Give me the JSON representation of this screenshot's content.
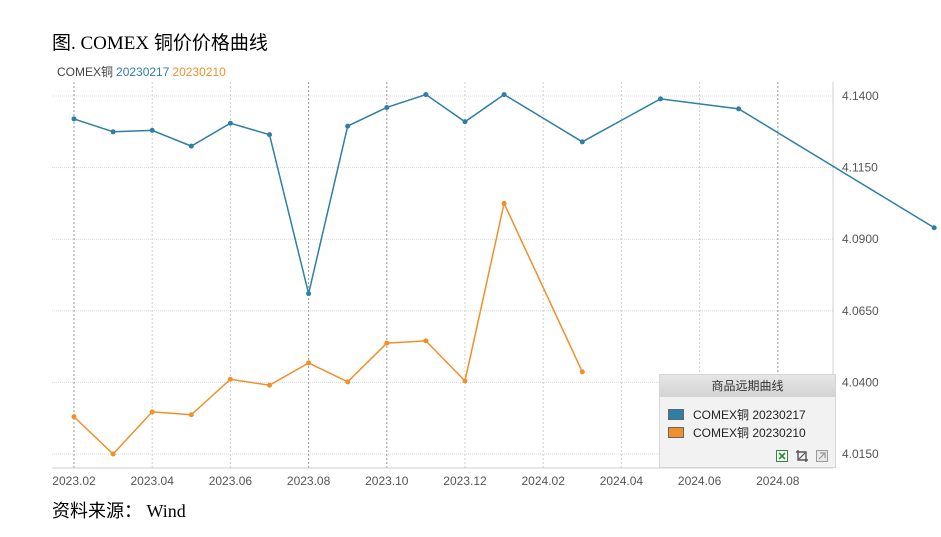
{
  "figure": {
    "title": "图. COMEX 铜价价格曲线",
    "source": "资料来源： Wind"
  },
  "legend": {
    "name": "COMEX铜",
    "entries": [
      {
        "label": "20230217",
        "color": "#2e7ea6"
      },
      {
        "label": "20230210",
        "color": "#f0902b"
      }
    ]
  },
  "panel": {
    "title": "商品远期曲线",
    "rows": [
      {
        "label": "COMEX铜 20230217",
        "color": "#2e7ea6"
      },
      {
        "label": "COMEX铜 20230210",
        "color": "#f0902b"
      }
    ],
    "icons": [
      "export-icon",
      "crop-icon",
      "collapse-icon"
    ]
  },
  "chart_data": {
    "type": "line",
    "title": "",
    "xlabel": "",
    "ylabel": "",
    "x_ticks": [
      "2023.02",
      "2023.04",
      "2023.06",
      "2023.08",
      "2023.10",
      "2023.12",
      "2024.02",
      "2024.04",
      "2024.06",
      "2024.08"
    ],
    "y_ticks": [
      "4.0150",
      "4.0400",
      "4.0650",
      "4.0900",
      "4.1150",
      "4.1400"
    ],
    "ylim": [
      4.015,
      4.14
    ],
    "y_axis_side": "right",
    "grid": true,
    "series": [
      {
        "name": "COMEX铜 20230217",
        "color": "#2e7ea6",
        "points": [
          [
            "2023-02",
            4.132
          ],
          [
            "2023-03",
            4.1275
          ],
          [
            "2023-04",
            4.128
          ],
          [
            "2023-05",
            4.1225
          ],
          [
            "2023-06",
            4.1305
          ],
          [
            "2023-07",
            4.1265
          ],
          [
            "2023-08",
            4.071
          ],
          [
            "2023-09",
            4.1295
          ],
          [
            "2023-10",
            4.136
          ],
          [
            "2023-11",
            4.1405
          ],
          [
            "2023-12",
            4.131
          ],
          [
            "2024-01",
            4.1405
          ],
          [
            "2024-03",
            4.124
          ],
          [
            "2024-05",
            4.139
          ],
          [
            "2024-07",
            4.1355
          ],
          [
            "2024-12",
            4.094
          ]
        ]
      },
      {
        "name": "COMEX铜 20230210",
        "color": "#f0902b",
        "points": [
          [
            "2023-02",
            4.028
          ],
          [
            "2023-03",
            4.015
          ],
          [
            "2023-04",
            4.0297
          ],
          [
            "2023-05",
            4.0287
          ],
          [
            "2023-06",
            4.0411
          ],
          [
            "2023-07",
            4.039
          ],
          [
            "2023-08",
            4.0468
          ],
          [
            "2023-09",
            4.0402
          ],
          [
            "2023-10",
            4.0537
          ],
          [
            "2023-11",
            4.0545
          ],
          [
            "2023-12",
            4.0405
          ],
          [
            "2024-01",
            4.1025
          ],
          [
            "2024-03",
            4.0437
          ]
        ]
      }
    ]
  }
}
